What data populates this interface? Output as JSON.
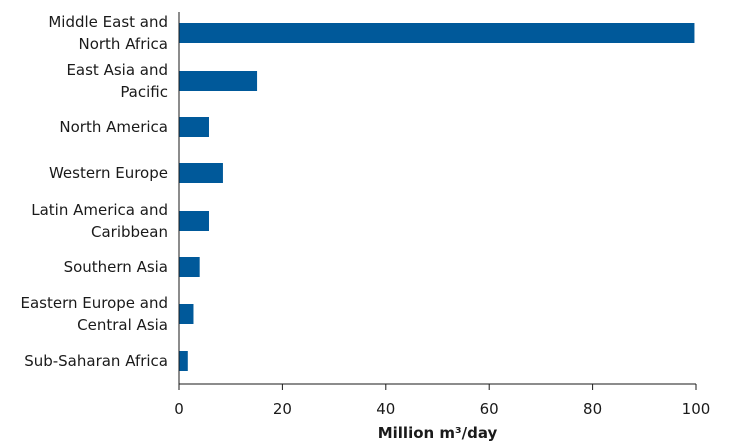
{
  "chart_data": {
    "type": "bar",
    "orientation": "horizontal",
    "categories": [
      [
        "Middle East and",
        "North Africa"
      ],
      [
        "East Asia and",
        "Pacific"
      ],
      [
        "North America"
      ],
      [
        "Western Europe"
      ],
      [
        "Latin America and",
        "Caribbean"
      ],
      [
        "Southern Asia"
      ],
      [
        "Eastern Europe and",
        "Central Asia"
      ],
      [
        "Sub-Saharan Africa"
      ]
    ],
    "values": [
      99.7,
      15.1,
      5.8,
      8.5,
      5.8,
      4.0,
      2.8,
      1.7
    ],
    "xlabel": "Million m³/day",
    "ylabel": "",
    "xlim": [
      0,
      100
    ],
    "xticks": [
      0,
      20,
      40,
      60,
      80,
      100
    ],
    "grid": false,
    "bar_color": "#00599a"
  }
}
